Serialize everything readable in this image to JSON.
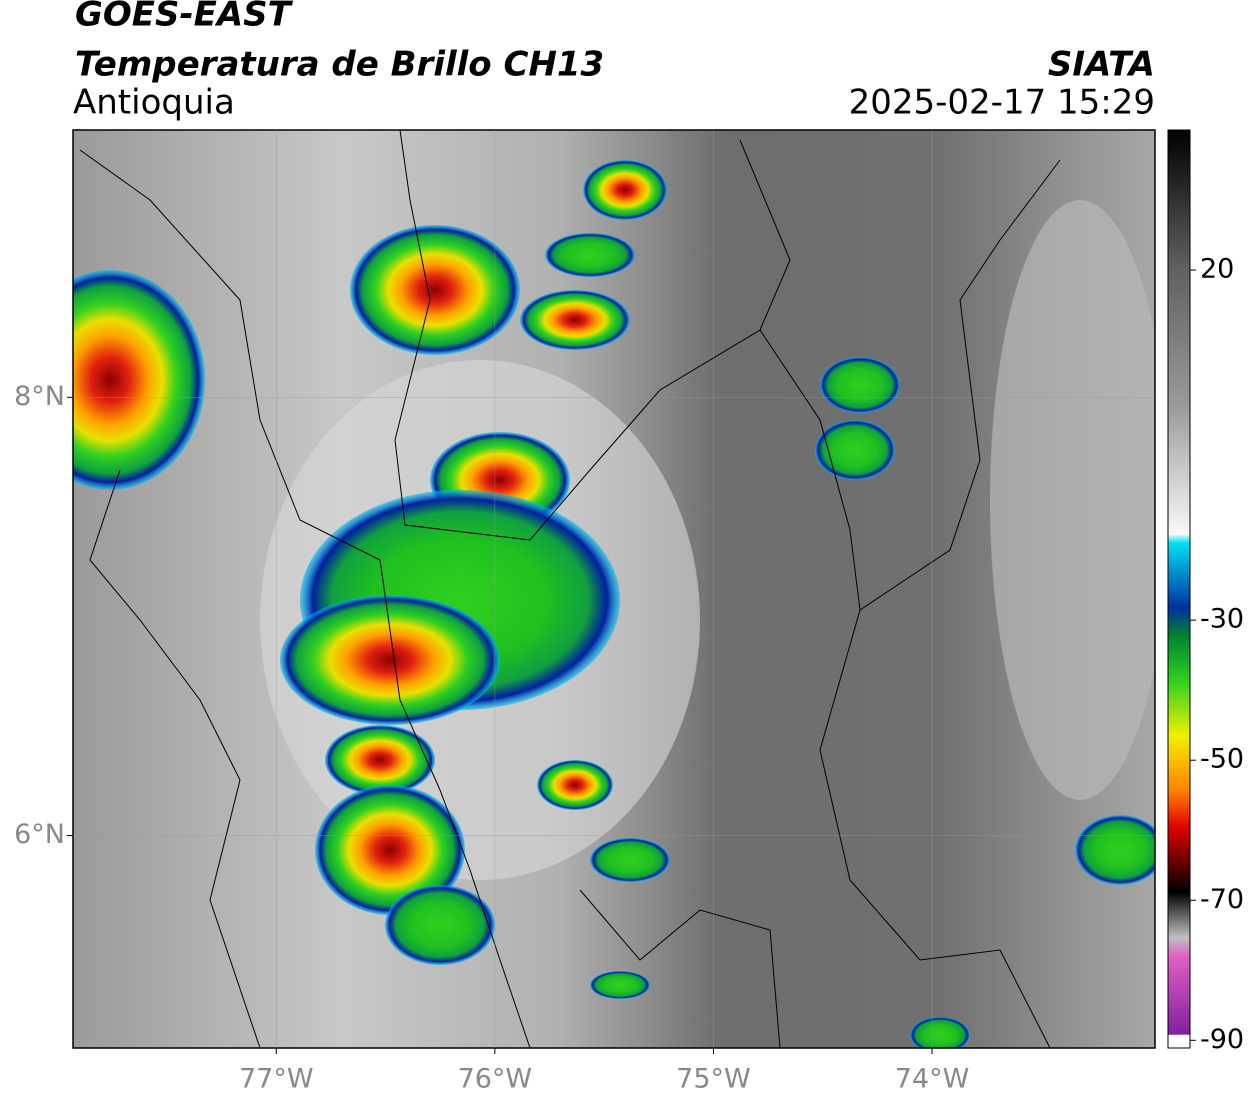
{
  "header": {
    "title": "GOES-EAST",
    "subtitle": "Temperatura de Brillo CH13",
    "region": "Antioquia",
    "source": "SIATA",
    "datetime": "2025-02-17 15:29"
  },
  "map": {
    "xlim": [
      -77.93,
      -72.98
    ],
    "ylim": [
      5.03,
      9.22
    ],
    "xticks": [
      {
        "value": -77,
        "label": "77°W"
      },
      {
        "value": -76,
        "label": "76°W"
      },
      {
        "value": -75,
        "label": "75°W"
      },
      {
        "value": -74,
        "label": "74°W"
      }
    ],
    "yticks": [
      {
        "value": 8,
        "label": "8°N"
      },
      {
        "value": 6,
        "label": "6°N"
      }
    ],
    "grid": true
  },
  "colorbar": {
    "lim": [
      -91.1,
      40
    ],
    "ticks": [
      20,
      -30,
      -50,
      -70,
      -90
    ]
  }
}
